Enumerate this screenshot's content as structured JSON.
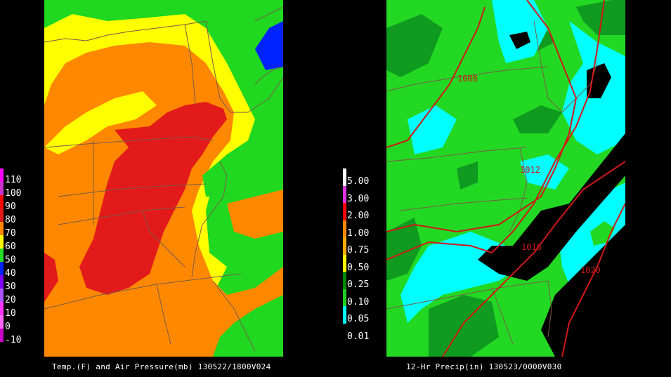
{
  "left_panel": {
    "caption": "Temp.(F) and Air Pressure(mb) 130522/1800V024",
    "colorbar": [
      {
        "label": "110",
        "color": "#ff00ff"
      },
      {
        "label": "100",
        "color": "#cc33cc"
      },
      {
        "label": "90",
        "color": "#ff0000"
      },
      {
        "label": "80",
        "color": "#e31a1a"
      },
      {
        "label": "70",
        "color": "#ff8800"
      },
      {
        "label": "60",
        "color": "#ffff00"
      },
      {
        "label": "50",
        "color": "#22dd22"
      },
      {
        "label": "40",
        "color": "#0022ff"
      },
      {
        "label": "30",
        "color": "#7f00ff"
      },
      {
        "label": "20",
        "color": "#aa55ff"
      },
      {
        "label": "10",
        "color": "#ff33ff"
      },
      {
        "label": "0",
        "color": "#ff66ff"
      },
      {
        "label": "-10",
        "color": "#cc00cc"
      }
    ],
    "colors": {
      "background": "#1fd81f",
      "yellow": "#ffff00",
      "orange": "#ff8800",
      "red": "#e31a1a",
      "blue": "#0022ff",
      "borders": "#7a5a4a"
    }
  },
  "right_panel": {
    "caption": "12-Hr Precip(in) 130523/0000V030",
    "colorbar": [
      {
        "label": "5.00",
        "color": "#ffffff"
      },
      {
        "label": "3.00",
        "color": "#dd33dd"
      },
      {
        "label": "2.00",
        "color": "#ff0000"
      },
      {
        "label": "1.00",
        "color": "#ff8800"
      },
      {
        "label": "0.75",
        "color": "#ffaa00"
      },
      {
        "label": "0.50",
        "color": "#ffff00"
      },
      {
        "label": "0.25",
        "color": "#008800"
      },
      {
        "label": "0.10",
        "color": "#22cc22"
      },
      {
        "label": "0.05",
        "color": "#00ffff"
      },
      {
        "label": "0.01",
        "color": "#000000"
      }
    ],
    "isobars": [
      "1008",
      "1012",
      "1016",
      "1020"
    ],
    "colors": {
      "light_green": "#23d823",
      "dark_green": "#0f9a20",
      "cyan": "#00ffff",
      "black": "#000000",
      "isobar": "#d01818",
      "borders": "#7a5a4a"
    }
  }
}
